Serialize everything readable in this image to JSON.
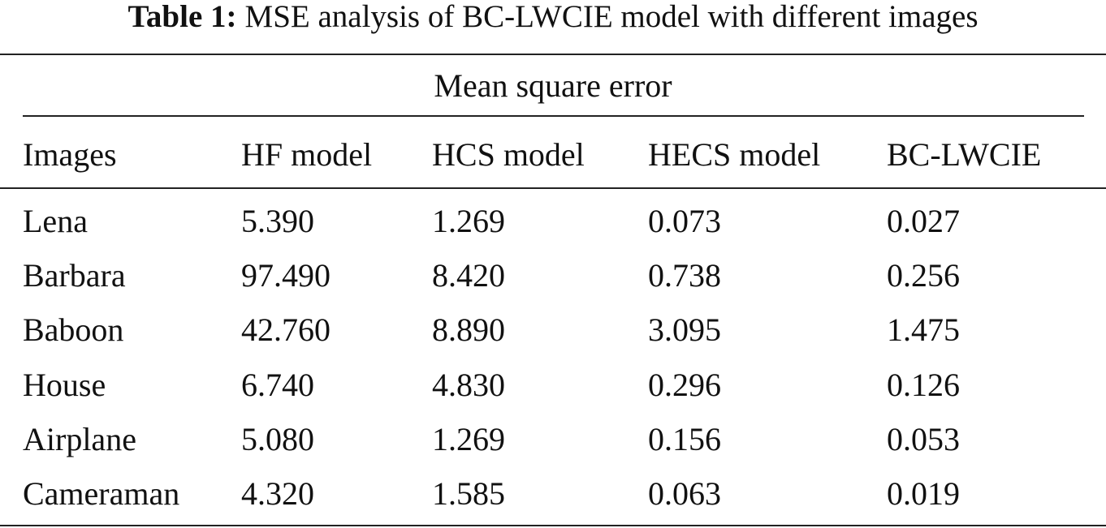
{
  "caption": {
    "label": "Table 1:",
    "text": "MSE analysis of BC-LWCIE model with different images"
  },
  "table": {
    "spanner": "Mean square error",
    "columns": [
      "Images",
      "HF model",
      "HCS model",
      "HECS model",
      "BC-LWCIE"
    ],
    "rows": [
      [
        "Lena",
        "5.390",
        "1.269",
        "0.073",
        "0.027"
      ],
      [
        "Barbara",
        "97.490",
        "8.420",
        "0.738",
        "0.256"
      ],
      [
        "Baboon",
        "42.760",
        "8.890",
        "3.095",
        "1.475"
      ],
      [
        "House",
        "6.740",
        "4.830",
        "0.296",
        "0.126"
      ],
      [
        "Airplane",
        "5.080",
        "1.269",
        "0.156",
        "0.053"
      ],
      [
        "Cameraman",
        "4.320",
        "1.585",
        "0.063",
        "0.019"
      ]
    ]
  }
}
